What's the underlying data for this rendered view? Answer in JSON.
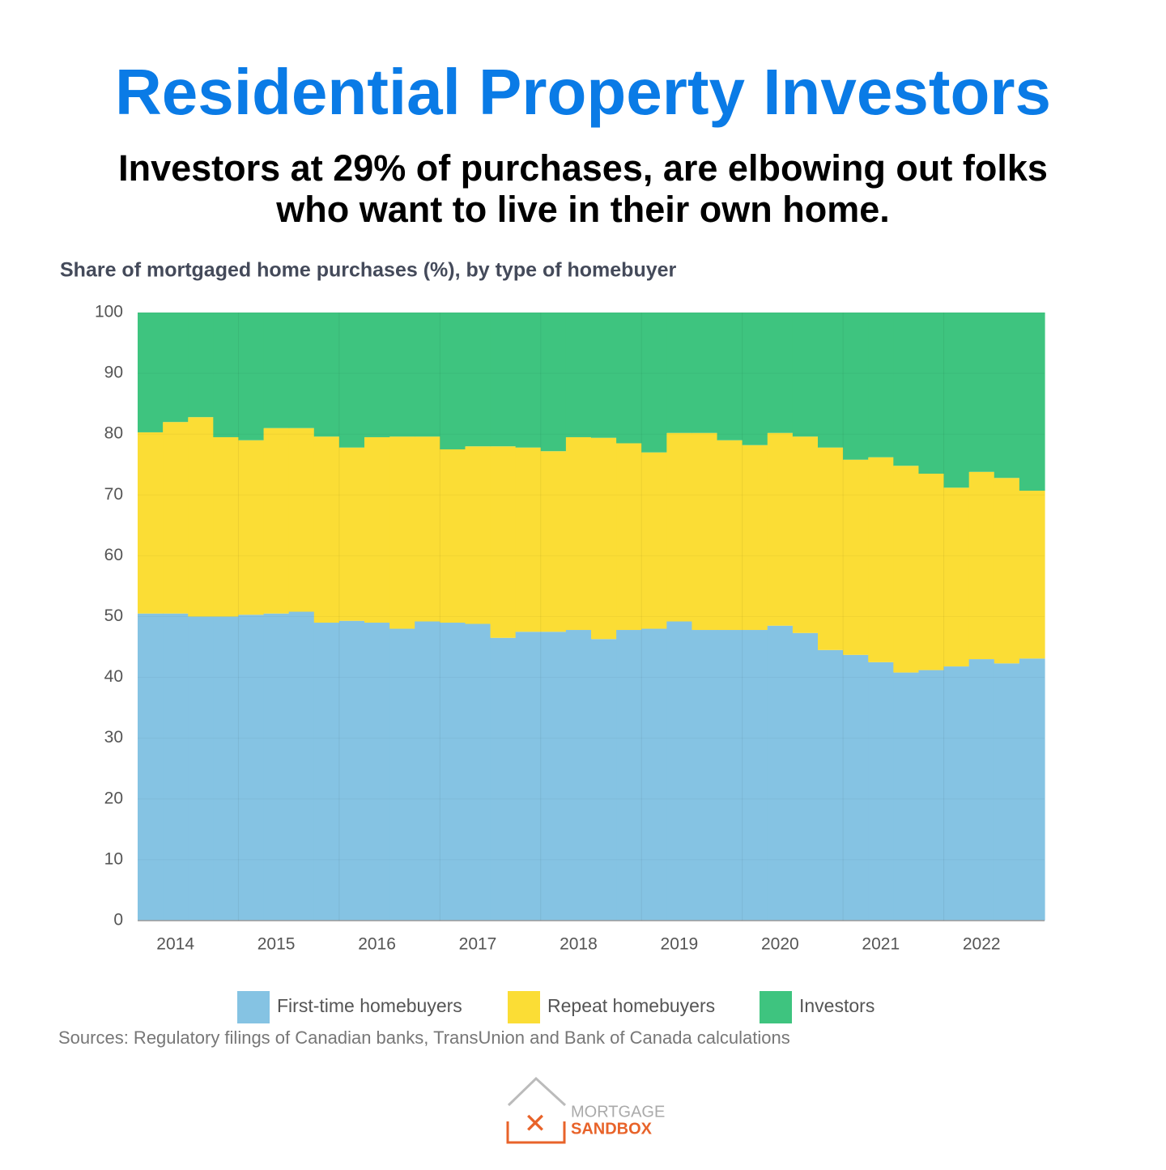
{
  "chart_data": {
    "type": "stacked_area",
    "title": "Residential Property Investors",
    "subtitle": [
      "Investors at 29% of purchases, are elbowing out folks",
      "who want to live in their own home."
    ],
    "chart_title": "Share of mortgaged home purchases (%), by type of homebuyer",
    "source": "Sources: Regulatory filings of Canadian banks, TransUnion and Bank of Canada calculations",
    "logo": [
      "MORTGAGE",
      "SANDBOX"
    ],
    "categories": [
      null,
      "2014",
      null,
      null,
      null,
      "2015",
      null,
      null,
      null,
      "2016",
      null,
      null,
      null,
      "2017",
      null,
      null,
      null,
      "2018",
      null,
      null,
      null,
      "2019",
      null,
      null,
      null,
      "2020",
      null,
      null,
      null,
      "2021",
      null,
      null,
      null,
      "2022",
      null,
      null
    ],
    "series": [
      {
        "name": "First-time homebuyers",
        "color": "#85c3e3",
        "values": [
          50.5,
          50.5,
          50,
          50,
          50.3,
          50.5,
          50.8,
          49,
          49.3,
          49,
          48,
          49.2,
          49,
          48.8,
          46.5,
          47.5,
          47.5,
          47.8,
          46.3,
          47.8,
          48,
          49.2,
          47.8,
          47.8,
          47.8,
          48.5,
          47.3,
          44.5,
          43.7,
          42.5,
          40.8,
          41.2,
          41.8,
          43,
          42.3,
          43.1
        ]
      },
      {
        "name": "Repeat homebuyers",
        "color": "#fbdd35",
        "values": [
          29.8,
          31.5,
          32.8,
          29.5,
          28.7,
          30.5,
          30.2,
          30.6,
          28.5,
          30.5,
          31.6,
          30.4,
          28.5,
          29.2,
          31.5,
          30.3,
          29.7,
          31.7,
          33.1,
          30.7,
          29,
          31,
          32.4,
          31.2,
          30.4,
          31.7,
          32.3,
          33.3,
          32.1,
          33.7,
          34,
          32.3,
          29.4,
          30.8,
          30.5,
          27.6
        ]
      },
      {
        "name": "Investors",
        "color": "#3ec47f",
        "values": [
          19.7,
          18,
          17.2,
          20.5,
          21,
          19,
          19,
          20.4,
          22.2,
          20.5,
          20.4,
          20.4,
          22.5,
          22,
          22,
          22.2,
          22.8,
          20.5,
          20.6,
          21.5,
          23,
          19.8,
          19.8,
          21,
          21.8,
          19.8,
          20.4,
          22.2,
          24.2,
          23.8,
          25.2,
          26.5,
          28.8,
          26.2,
          27.2,
          29.3
        ]
      }
    ],
    "ylim": [
      0,
      100
    ],
    "yticks": [
      0,
      10,
      20,
      30,
      40,
      50,
      60,
      70,
      80,
      90,
      100
    ],
    "grid": true
  }
}
